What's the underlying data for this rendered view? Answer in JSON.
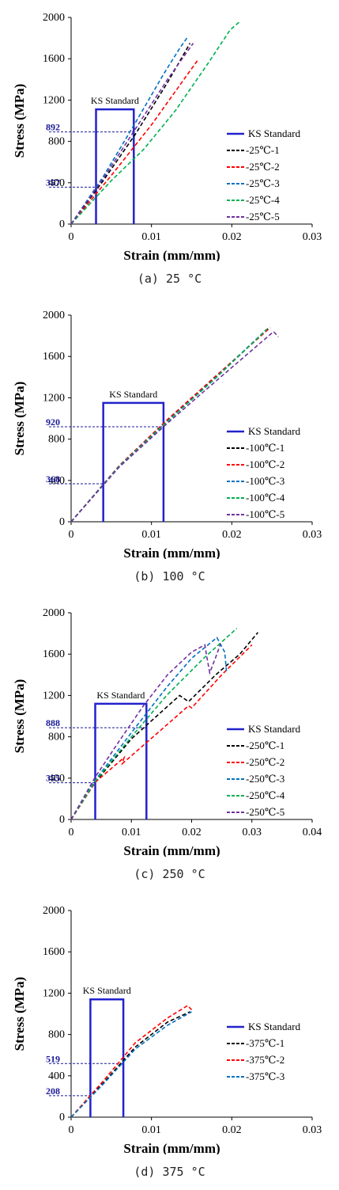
{
  "chart_data": [
    {
      "type": "line",
      "caption": "(a) 25 °C",
      "xlabel": "Strain (mm/mm)",
      "ylabel": "Stress (MPa)",
      "xlim": [
        0,
        0.03
      ],
      "ylim": [
        0,
        2000
      ],
      "x_ticks": [
        "0",
        "0.01",
        "0.02",
        "0.03"
      ],
      "y_ticks": [
        "0",
        "400",
        "800",
        "1200",
        "1600",
        "2000"
      ],
      "grid": false,
      "legend_position": "right",
      "ks_standard": {
        "label": "KS Standard",
        "x_start": 0.0031,
        "x_end": 0.0078,
        "height": 1110,
        "lower_stress": 357,
        "upper_stress": 892,
        "annot_lower": "357",
        "annot_upper": "892"
      },
      "series": [
        {
          "name": "25℃-1",
          "color": "#000000",
          "x": [
            0,
            0.004,
            0.008,
            0.012,
            0.0148
          ],
          "y": [
            0,
            420,
            870,
            1370,
            1750
          ]
        },
        {
          "name": "25℃-2",
          "color": "#ff0000",
          "x": [
            0,
            0.005,
            0.01,
            0.0145,
            0.0158
          ],
          "y": [
            0,
            470,
            960,
            1450,
            1590
          ]
        },
        {
          "name": "25℃-3",
          "color": "#0070c0",
          "x": [
            0,
            0.004,
            0.008,
            0.0115,
            0.0135,
            0.0145
          ],
          "y": [
            0,
            460,
            980,
            1450,
            1700,
            1810
          ]
        },
        {
          "name": "25℃-4",
          "color": "#00b050",
          "x": [
            0,
            0.005,
            0.009,
            0.013,
            0.017,
            0.0198,
            0.021
          ],
          "y": [
            0,
            420,
            720,
            1100,
            1550,
            1880,
            1960
          ]
        },
        {
          "name": "25℃-5",
          "color": "#7030a0",
          "x": [
            0,
            0.004,
            0.008,
            0.012,
            0.0152
          ],
          "y": [
            0,
            440,
            920,
            1400,
            1750
          ]
        }
      ]
    },
    {
      "type": "line",
      "caption": "(b) 100 °C",
      "xlabel": "Strain (mm/mm)",
      "ylabel": "Stress (MPa)",
      "xlim": [
        0,
        0.03
      ],
      "ylim": [
        0,
        2000
      ],
      "x_ticks": [
        "0",
        "0.01",
        "0.02",
        "0.03"
      ],
      "y_ticks": [
        "0",
        "400",
        "800",
        "1200",
        "1600",
        "2000"
      ],
      "grid": false,
      "legend_position": "right",
      "ks_standard": {
        "label": "KS Standard",
        "x_start": 0.004,
        "x_end": 0.0115,
        "height": 1150,
        "lower_stress": 368,
        "upper_stress": 920,
        "annot_lower": "368",
        "annot_upper": "920"
      },
      "series": [
        {
          "name": "100℃-1",
          "color": "#000000",
          "x": [
            0,
            0.006,
            0.012,
            0.018,
            0.0245
          ],
          "y": [
            0,
            540,
            980,
            1400,
            1870
          ]
        },
        {
          "name": "100℃-2",
          "color": "#ff0000",
          "x": [
            0,
            0.006,
            0.012,
            0.018,
            0.0248
          ],
          "y": [
            0,
            545,
            990,
            1410,
            1880
          ]
        },
        {
          "name": "100℃-3",
          "color": "#0070c0",
          "x": [
            0,
            0.006,
            0.012,
            0.018,
            0.0243
          ],
          "y": [
            0,
            540,
            975,
            1395,
            1860
          ]
        },
        {
          "name": "100℃-4",
          "color": "#00b050",
          "x": [
            0,
            0.006,
            0.012,
            0.018,
            0.0244
          ],
          "y": [
            0,
            538,
            972,
            1390,
            1865
          ]
        },
        {
          "name": "100℃-5",
          "color": "#7030a0",
          "x": [
            0,
            0.006,
            0.012,
            0.018,
            0.0252,
            0.0258
          ],
          "y": [
            0,
            530,
            955,
            1360,
            1840,
            1790
          ]
        }
      ]
    },
    {
      "type": "line",
      "caption": "(c) 250 °C",
      "xlabel": "Strain (mm/mm)",
      "ylabel": "Stress (MPa)",
      "xlim": [
        0,
        0.04
      ],
      "ylim": [
        0,
        2000
      ],
      "x_ticks": [
        "0",
        "0.01",
        "0.02",
        "0.03",
        "0.04"
      ],
      "y_ticks": [
        "0",
        "400",
        "800",
        "1200",
        "1600",
        "2000"
      ],
      "grid": false,
      "legend_position": "right",
      "ks_standard": {
        "label": "KS Standard",
        "x_start": 0.004,
        "x_end": 0.0125,
        "height": 1120,
        "lower_stress": 355,
        "upper_stress": 888,
        "annot_lower": "355",
        "annot_upper": "888"
      },
      "series": [
        {
          "name": "250℃-1",
          "color": "#000000",
          "x": [
            0,
            0.004,
            0.01,
            0.018,
            0.0195,
            0.024,
            0.028,
            0.031
          ],
          "y": [
            0,
            360,
            780,
            1200,
            1140,
            1400,
            1600,
            1810
          ]
        },
        {
          "name": "250℃-2",
          "color": "#ff0000",
          "x": [
            0,
            0.004,
            0.0088,
            0.0085,
            0.014,
            0.0195,
            0.02,
            0.025,
            0.03
          ],
          "y": [
            0,
            360,
            600,
            540,
            820,
            1100,
            1080,
            1400,
            1690
          ]
        },
        {
          "name": "250℃-3",
          "color": "#0070c0",
          "x": [
            0,
            0.004,
            0.01,
            0.016,
            0.02,
            0.0242,
            0.0255,
            0.0258
          ],
          "y": [
            0,
            380,
            840,
            1290,
            1560,
            1760,
            1620,
            1420
          ]
        },
        {
          "name": "250℃-4",
          "color": "#00b050",
          "x": [
            0,
            0.004,
            0.01,
            0.016,
            0.022,
            0.0275
          ],
          "y": [
            0,
            370,
            800,
            1210,
            1560,
            1850
          ]
        },
        {
          "name": "250℃-5",
          "color": "#7030a0",
          "x": [
            0,
            0.004,
            0.008,
            0.012,
            0.016,
            0.02,
            0.0222,
            0.0225,
            0.023,
            0.024,
            0.0248
          ],
          "y": [
            0,
            410,
            760,
            1100,
            1400,
            1620,
            1690,
            1580,
            1420,
            1570,
            1700
          ]
        }
      ]
    },
    {
      "type": "line",
      "caption": "(d) 375 °C",
      "xlabel": "Strain (mm/mm)",
      "ylabel": "Stress (MPa)",
      "xlim": [
        0,
        0.03
      ],
      "ylim": [
        0,
        2000
      ],
      "x_ticks": [
        "0",
        "0.01",
        "0.02",
        "0.03"
      ],
      "y_ticks": [
        "0",
        "400",
        "800",
        "1200",
        "1600",
        "2000"
      ],
      "grid": false,
      "legend_position": "right",
      "ks_standard": {
        "label": "KS Standard",
        "x_start": 0.0024,
        "x_end": 0.0065,
        "height": 1140,
        "lower_stress": 208,
        "upper_stress": 519,
        "annot_lower": "208",
        "annot_upper": "519"
      },
      "series": [
        {
          "name": "375℃-1",
          "color": "#000000",
          "x": [
            0,
            0.004,
            0.008,
            0.012,
            0.0148
          ],
          "y": [
            0,
            330,
            680,
            920,
            1020
          ]
        },
        {
          "name": "375℃-2",
          "color": "#ff0000",
          "x": [
            0,
            0.004,
            0.008,
            0.012,
            0.0145,
            0.015
          ],
          "y": [
            0,
            350,
            720,
            960,
            1080,
            1040
          ]
        },
        {
          "name": "375℃-3",
          "color": "#0070c0",
          "x": [
            0,
            0.004,
            0.008,
            0.012,
            0.015
          ],
          "y": [
            0,
            320,
            660,
            890,
            1020
          ]
        }
      ]
    }
  ],
  "colors": {
    "ks_standard": "#2222cc",
    "annotation": "#1a1a99",
    "axis": "#000000"
  }
}
